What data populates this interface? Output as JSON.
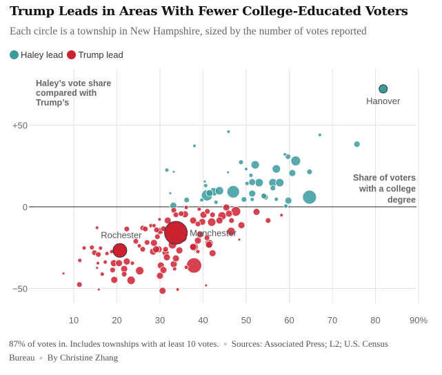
{
  "header": {
    "title": "Trump Leads in Areas With Fewer College-Educated Voters",
    "subtitle": "Each circle is a township in New Hampshire, sized by the number of votes reported"
  },
  "legend": [
    {
      "label": "Haley lead",
      "color": "#3a9a9c",
      "key": "haley"
    },
    {
      "label": "Trump lead",
      "color": "#cc2230",
      "key": "trump"
    }
  ],
  "footer": {
    "note": "87% of votes in. Includes townships with at least 10 votes.",
    "sources": "Sources: Associated Press; L2; U.S. Census Bureau",
    "byline": "By Christine Zhang"
  },
  "chart_data": {
    "type": "scatter",
    "title": "Trump Leads in Areas With Fewer College-Educated Voters",
    "subtitle": "Each circle is a township in New Hampshire, sized by the number of votes reported",
    "xlabel": "Share of voters with a college degree",
    "ylabel": "Haley’s vote share compared with Trump’s",
    "xlim": [
      0,
      90
    ],
    "ylim": [
      -60,
      82
    ],
    "x_ticks": [
      10,
      20,
      30,
      40,
      50,
      60,
      70,
      80,
      90
    ],
    "x_tick_labels": [
      "10",
      "20",
      "30",
      "40",
      "50",
      "60",
      "70",
      "80",
      "90%"
    ],
    "y_ticks": [
      50,
      0,
      -50
    ],
    "y_tick_labels": [
      "+50",
      "0",
      "−50"
    ],
    "grid": true,
    "legend_position": "top-left",
    "size_encoding": "relative number of votes reported (radius index)",
    "annotations": [
      {
        "label": "Hanover",
        "x": 81.8,
        "y": 72.2
      },
      {
        "label": "Manchester",
        "x": 33.7,
        "y": -15.9
      },
      {
        "label": "Rochester",
        "x": 20.7,
        "y": -26.7
      }
    ],
    "series": [
      {
        "name": "Haley lead",
        "color": "#3a9a9c",
        "points": [
          {
            "x": 81.8,
            "y": 72.2,
            "size": 6,
            "label": "Hanover"
          },
          {
            "x": 67.1,
            "y": 44.0,
            "size": 2.5
          },
          {
            "x": 75.7,
            "y": 38.3,
            "size": 4.5
          },
          {
            "x": 45.9,
            "y": 46.0,
            "size": 2.5
          },
          {
            "x": 38.0,
            "y": 37.3,
            "size": 2.5
          },
          {
            "x": 59.0,
            "y": 32.1,
            "size": 2.5
          },
          {
            "x": 59.7,
            "y": 30.7,
            "size": 4
          },
          {
            "x": 61.5,
            "y": 28.1,
            "size": 7
          },
          {
            "x": 48.8,
            "y": 27.3,
            "size": 3.5
          },
          {
            "x": 52.1,
            "y": 25.7,
            "size": 6
          },
          {
            "x": 57.0,
            "y": 23.2,
            "size": 6
          },
          {
            "x": 64.7,
            "y": 21.4,
            "size": 4
          },
          {
            "x": 60.7,
            "y": 20.7,
            "size": 5
          },
          {
            "x": 50.0,
            "y": 23.1,
            "size": 2.5
          },
          {
            "x": 45.8,
            "y": 21.1,
            "size": 2
          },
          {
            "x": 51.1,
            "y": 19.3,
            "size": 3
          },
          {
            "x": 31.6,
            "y": 22.5,
            "size": 3
          },
          {
            "x": 33.2,
            "y": 21.5,
            "size": 2
          },
          {
            "x": 56.2,
            "y": 14.8,
            "size": 6
          },
          {
            "x": 57.8,
            "y": 14.8,
            "size": 6
          },
          {
            "x": 56.2,
            "y": 11.5,
            "size": 4
          },
          {
            "x": 64.7,
            "y": 5.9,
            "size": 10
          },
          {
            "x": 54.2,
            "y": 6.6,
            "size": 4
          },
          {
            "x": 54.5,
            "y": 5.9,
            "size": 4
          },
          {
            "x": 57.0,
            "y": 4.6,
            "size": 3
          },
          {
            "x": 59.8,
            "y": 3.8,
            "size": 5
          },
          {
            "x": 59.2,
            "y": 0.5,
            "size": 3
          },
          {
            "x": 50.2,
            "y": 14.3,
            "size": 3
          },
          {
            "x": 51.4,
            "y": 15.1,
            "size": 5
          },
          {
            "x": 53.0,
            "y": 14.8,
            "size": 6
          },
          {
            "x": 40.4,
            "y": 15.5,
            "size": 2
          },
          {
            "x": 40.6,
            "y": 13.0,
            "size": 3
          },
          {
            "x": 32.4,
            "y": 8.3,
            "size": 2
          },
          {
            "x": 40.9,
            "y": 7.0,
            "size": 8
          },
          {
            "x": 42.5,
            "y": 9.2,
            "size": 6
          },
          {
            "x": 43.8,
            "y": 9.8,
            "size": 6
          },
          {
            "x": 47.0,
            "y": 9.2,
            "size": 9
          },
          {
            "x": 51.4,
            "y": 8.1,
            "size": 5
          },
          {
            "x": 54.1,
            "y": 6.6,
            "size": 4
          },
          {
            "x": 36.2,
            "y": 4.2,
            "size": 4
          },
          {
            "x": 33.1,
            "y": 0.7,
            "size": 5
          },
          {
            "x": 49.5,
            "y": 4.5,
            "size": 4
          },
          {
            "x": 51.4,
            "y": 4.5,
            "size": 3
          },
          {
            "x": 43.0,
            "y": 2.8,
            "size": 3
          },
          {
            "x": 39.7,
            "y": 4.2,
            "size": 3
          },
          {
            "x": 41.5,
            "y": 8.4,
            "size": 5
          }
        ]
      },
      {
        "name": "Trump lead",
        "color": "#cc2230",
        "points": [
          {
            "x": 15.4,
            "y": -12.8,
            "size": 2.5
          },
          {
            "x": 22.3,
            "y": -13.6,
            "size": 4
          },
          {
            "x": 12.4,
            "y": -25.2,
            "size": 3
          },
          {
            "x": 14.2,
            "y": -24.9,
            "size": 3.5
          },
          {
            "x": 14.8,
            "y": -28.1,
            "size": 4
          },
          {
            "x": 15.7,
            "y": -29.2,
            "size": 4
          },
          {
            "x": 16.2,
            "y": -25.3,
            "size": 3
          },
          {
            "x": 17.7,
            "y": -28.6,
            "size": 3
          },
          {
            "x": 18.8,
            "y": -27.4,
            "size": 3
          },
          {
            "x": 11.4,
            "y": -32.8,
            "size": 3
          },
          {
            "x": 15.6,
            "y": -34.5,
            "size": 2.5
          },
          {
            "x": 17.3,
            "y": -33.8,
            "size": 3
          },
          {
            "x": 15.4,
            "y": -37.4,
            "size": 2
          },
          {
            "x": 7.6,
            "y": -40.8,
            "size": 2
          },
          {
            "x": 16.6,
            "y": -41.2,
            "size": 3
          },
          {
            "x": 19.0,
            "y": -38.7,
            "size": 4
          },
          {
            "x": 19.3,
            "y": -34.5,
            "size": 5
          },
          {
            "x": 20.5,
            "y": -34.5,
            "size": 5
          },
          {
            "x": 21.7,
            "y": -38.0,
            "size": 5
          },
          {
            "x": 22.3,
            "y": -33.5,
            "size": 5
          },
          {
            "x": 23.6,
            "y": -34.5,
            "size": 3
          },
          {
            "x": 21.7,
            "y": -41.2,
            "size": 4
          },
          {
            "x": 25.3,
            "y": -39.1,
            "size": 6
          },
          {
            "x": 19.4,
            "y": -44.7,
            "size": 5
          },
          {
            "x": 23.3,
            "y": -45.0,
            "size": 6
          },
          {
            "x": 11.3,
            "y": -47.6,
            "size": 4
          },
          {
            "x": 15.8,
            "y": -50.6,
            "size": 2
          },
          {
            "x": 29.9,
            "y": -7.7,
            "size": 2.5
          },
          {
            "x": 33.2,
            "y": -2.1,
            "size": 4
          },
          {
            "x": 33.7,
            "y": -4.9,
            "size": 4
          },
          {
            "x": 34.9,
            "y": -4.2,
            "size": 4
          },
          {
            "x": 31.8,
            "y": -8.4,
            "size": 5
          },
          {
            "x": 26.0,
            "y": -13.0,
            "size": 4
          },
          {
            "x": 26.6,
            "y": -13.6,
            "size": 4
          },
          {
            "x": 27.9,
            "y": -11.5,
            "size": 3
          },
          {
            "x": 28.6,
            "y": -11.5,
            "size": 3
          },
          {
            "x": 29.2,
            "y": -14.1,
            "size": 4
          },
          {
            "x": 30.0,
            "y": -14.8,
            "size": 5
          },
          {
            "x": 30.8,
            "y": -13.4,
            "size": 4
          },
          {
            "x": 29.4,
            "y": -18.3,
            "size": 4
          },
          {
            "x": 24.4,
            "y": -21.1,
            "size": 4
          },
          {
            "x": 25.2,
            "y": -23.9,
            "size": 3
          },
          {
            "x": 27.0,
            "y": -21.8,
            "size": 4
          },
          {
            "x": 28.6,
            "y": -22.1,
            "size": 5
          },
          {
            "x": 26.0,
            "y": -26.0,
            "size": 4
          },
          {
            "x": 28.4,
            "y": -27.4,
            "size": 5
          },
          {
            "x": 29.7,
            "y": -26.0,
            "size": 5
          },
          {
            "x": 31.3,
            "y": -28.1,
            "size": 5
          },
          {
            "x": 39.1,
            "y": -1.4,
            "size": 3
          },
          {
            "x": 40.1,
            "y": -4.9,
            "size": 5
          },
          {
            "x": 41.0,
            "y": -2.8,
            "size": 4
          },
          {
            "x": 42.2,
            "y": -4.9,
            "size": 4
          },
          {
            "x": 45.4,
            "y": -0.4,
            "size": 5
          },
          {
            "x": 47.6,
            "y": -2.8,
            "size": 7
          },
          {
            "x": 46.0,
            "y": -4.2,
            "size": 5
          },
          {
            "x": 44.4,
            "y": -5.6,
            "size": 6
          },
          {
            "x": 46.6,
            "y": -8.4,
            "size": 4
          },
          {
            "x": 48.9,
            "y": -11.3,
            "size": 5
          },
          {
            "x": 52.4,
            "y": -3.1,
            "size": 5
          },
          {
            "x": 55.1,
            "y": -8.4,
            "size": 4
          },
          {
            "x": 58.2,
            "y": -5.1,
            "size": 2.5
          },
          {
            "x": 37.7,
            "y": -8.4,
            "size": 5
          },
          {
            "x": 38.8,
            "y": -10.5,
            "size": 4
          },
          {
            "x": 39.8,
            "y": -9.2,
            "size": 5
          },
          {
            "x": 42.0,
            "y": -9.4,
            "size": 6
          },
          {
            "x": 46.5,
            "y": -15.1,
            "size": 6
          },
          {
            "x": 48.4,
            "y": -20.1,
            "size": 2
          },
          {
            "x": 41.4,
            "y": -23.2,
            "size": 5
          },
          {
            "x": 37.7,
            "y": -24.6,
            "size": 5
          },
          {
            "x": 37.9,
            "y": -35.9,
            "size": 11
          },
          {
            "x": 36.1,
            "y": -37.0,
            "size": 3
          },
          {
            "x": 41.4,
            "y": -22.5,
            "size": 6
          },
          {
            "x": 42.2,
            "y": -28.4,
            "size": 5
          },
          {
            "x": 38.8,
            "y": -20.7,
            "size": 5
          },
          {
            "x": 37.9,
            "y": -24.6,
            "size": 6
          },
          {
            "x": 38.8,
            "y": -27.4,
            "size": 3
          },
          {
            "x": 30.2,
            "y": -35.9,
            "size": 5
          },
          {
            "x": 30.8,
            "y": -38.7,
            "size": 5
          },
          {
            "x": 30.0,
            "y": -42.2,
            "size": 5
          },
          {
            "x": 33.2,
            "y": -35.1,
            "size": 5
          },
          {
            "x": 33.4,
            "y": -38.0,
            "size": 3
          },
          {
            "x": 33.7,
            "y": -31.6,
            "size": 5
          },
          {
            "x": 31.6,
            "y": -30.9,
            "size": 5
          },
          {
            "x": 31.3,
            "y": -26.0,
            "size": 4
          },
          {
            "x": 29.1,
            "y": -26.0,
            "size": 5
          },
          {
            "x": 34.5,
            "y": -26.7,
            "size": 5
          },
          {
            "x": 30.6,
            "y": -51.4,
            "size": 5
          },
          {
            "x": 34.1,
            "y": -50.6,
            "size": 2.5
          },
          {
            "x": 40.7,
            "y": -48.1,
            "size": 2
          },
          {
            "x": 36.1,
            "y": -0.4,
            "size": 3
          },
          {
            "x": 35.8,
            "y": -4.6,
            "size": 5
          },
          {
            "x": 39.3,
            "y": -16.9,
            "size": 5
          },
          {
            "x": 40.9,
            "y": -19.0,
            "size": 4
          },
          {
            "x": 43.8,
            "y": -8.4,
            "size": 5
          },
          {
            "x": 32.9,
            "y": -23.2,
            "size": 6
          },
          {
            "x": 35.3,
            "y": -19.0,
            "size": 6
          },
          {
            "x": 20.7,
            "y": -26.7,
            "size": 10,
            "label": "Rochester"
          },
          {
            "x": 33.7,
            "y": -15.9,
            "size": 16.5,
            "label": "Manchester"
          }
        ]
      }
    ]
  }
}
